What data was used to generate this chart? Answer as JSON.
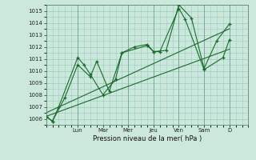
{
  "xlabel": "Pression niveau de la mer( hPa )",
  "bg_color": "#cce8dd",
  "grid_color": "#99ccbb",
  "line_color": "#1a6b2a",
  "ylim": [
    1005.5,
    1015.5
  ],
  "xlim": [
    0,
    16
  ],
  "day_labels": [
    "Lun",
    "Mar",
    "Mer",
    "Jeu",
    "Ven",
    "Sam",
    "D"
  ],
  "day_positions": [
    2.5,
    4.5,
    6.5,
    8.5,
    10.5,
    12.5,
    14.5
  ],
  "series1_x": [
    0.0,
    0.5,
    1.0,
    2.5,
    3.0,
    3.5,
    4.5,
    5.5,
    6.0,
    8.0,
    8.5,
    9.0,
    10.5,
    11.0,
    12.5,
    14.0,
    14.5
  ],
  "series1_y": [
    1006.2,
    1005.8,
    1007.0,
    1011.1,
    1010.5,
    1009.7,
    1008.0,
    1009.3,
    1011.5,
    1012.1,
    1011.6,
    1011.6,
    1015.2,
    1014.3,
    1010.1,
    1011.1,
    1012.6
  ],
  "series2_x": [
    0.0,
    0.5,
    1.5,
    2.5,
    3.5,
    4.0,
    5.0,
    6.0,
    7.0,
    8.0,
    8.5,
    9.5,
    10.5,
    11.5,
    12.5,
    13.5,
    14.5
  ],
  "series2_y": [
    1006.2,
    1005.8,
    1007.8,
    1010.5,
    1009.5,
    1010.8,
    1008.3,
    1011.5,
    1012.0,
    1012.2,
    1011.6,
    1011.7,
    1015.5,
    1014.4,
    1010.2,
    1012.5,
    1013.9
  ],
  "trend1_x": [
    0.0,
    14.5
  ],
  "trend1_y": [
    1006.2,
    1011.8
  ],
  "trend2_x": [
    0.0,
    14.5
  ],
  "trend2_y": [
    1006.5,
    1013.5
  ],
  "yticks": [
    1006,
    1007,
    1008,
    1009,
    1010,
    1011,
    1012,
    1013,
    1014,
    1015
  ],
  "vlines": [
    2.5,
    6.5,
    8.5,
    10.5,
    12.5,
    14.5
  ]
}
